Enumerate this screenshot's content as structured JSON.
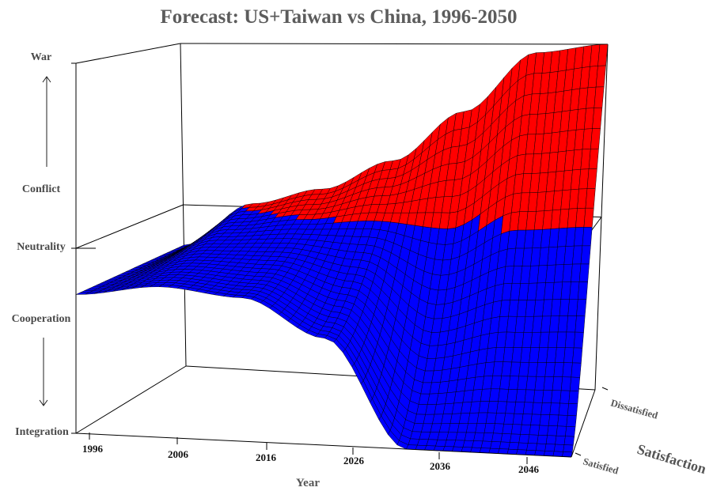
{
  "chart_data": {
    "type": "surface",
    "title": "Forecast: US+Taiwan vs China, 1996-2050",
    "xlabel": "Year",
    "ylabel": "Satisfaction",
    "x_ticks": [
      "1996",
      "2006",
      "2016",
      "2026",
      "2036",
      "2046"
    ],
    "y_ticks": [
      "Satisfied",
      "Dissatisfied"
    ],
    "z_ticks": [
      "Integration",
      "Cooperation",
      "Neutrality",
      "Conflict",
      "War"
    ],
    "xlim": [
      1996,
      2050
    ],
    "zlim": [
      -1,
      1
    ],
    "neutral_level": 0,
    "colors": {
      "above_neutral": "#ff0000",
      "below_neutral": "#0000ff",
      "mesh": "#000000"
    },
    "surface_samples": {
      "years": [
        1996,
        2006,
        2016,
        2026,
        2036,
        2046,
        2050
      ],
      "satisfied_edge": [
        -0.25,
        -0.2,
        -0.25,
        -0.45,
        -1.0,
        -1.0,
        -1.0
      ],
      "dissatisfied_edge": [
        -0.25,
        0.02,
        0.12,
        0.3,
        0.6,
        0.95,
        1.0
      ]
    }
  }
}
